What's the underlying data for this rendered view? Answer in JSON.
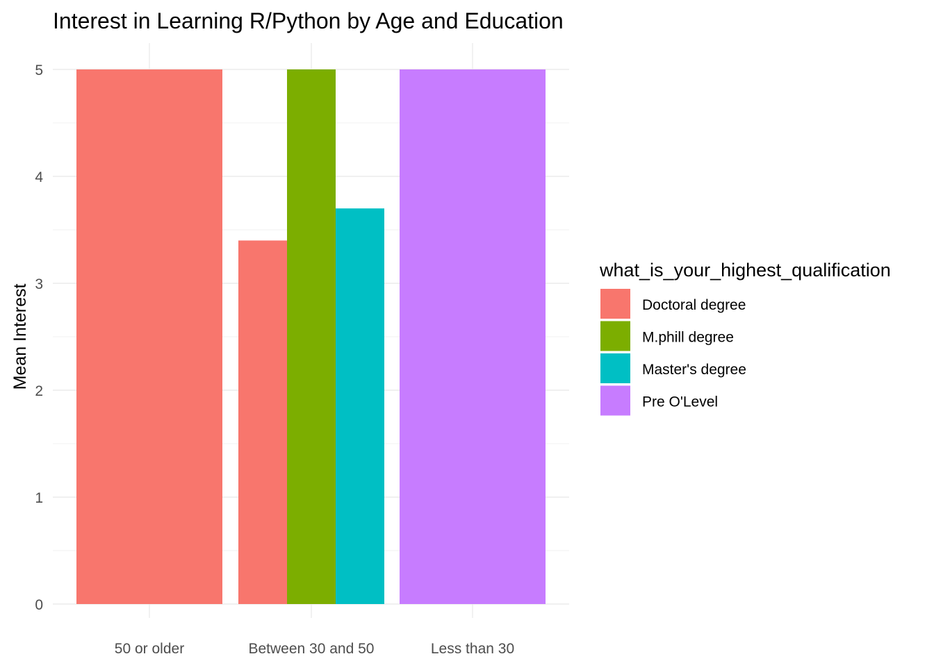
{
  "chart_data": {
    "type": "bar",
    "title": "Interest in Learning R/Python by Age and Education",
    "xlabel": "",
    "ylabel": "Mean Interest",
    "ylim": [
      0,
      5
    ],
    "y_ticks": [
      "0",
      "1",
      "2",
      "3",
      "4",
      "5"
    ],
    "categories": [
      "50 or older",
      "Between 30 and 50",
      "Less than 30"
    ],
    "legend": {
      "title": "what_is_your_highest_qualification",
      "placement": "right"
    },
    "series": [
      {
        "name": "Doctoral degree",
        "color": "#F8766D",
        "values": [
          5,
          3.4,
          null
        ]
      },
      {
        "name": "M.phill degree",
        "color": "#7CAE00",
        "values": [
          null,
          5,
          null
        ]
      },
      {
        "name": "Master's degree",
        "color": "#00BFC4",
        "values": [
          null,
          3.7,
          null
        ]
      },
      {
        "name": "Pre O'Level",
        "color": "#C77CFF",
        "values": [
          null,
          null,
          5
        ]
      }
    ],
    "grid": true
  }
}
